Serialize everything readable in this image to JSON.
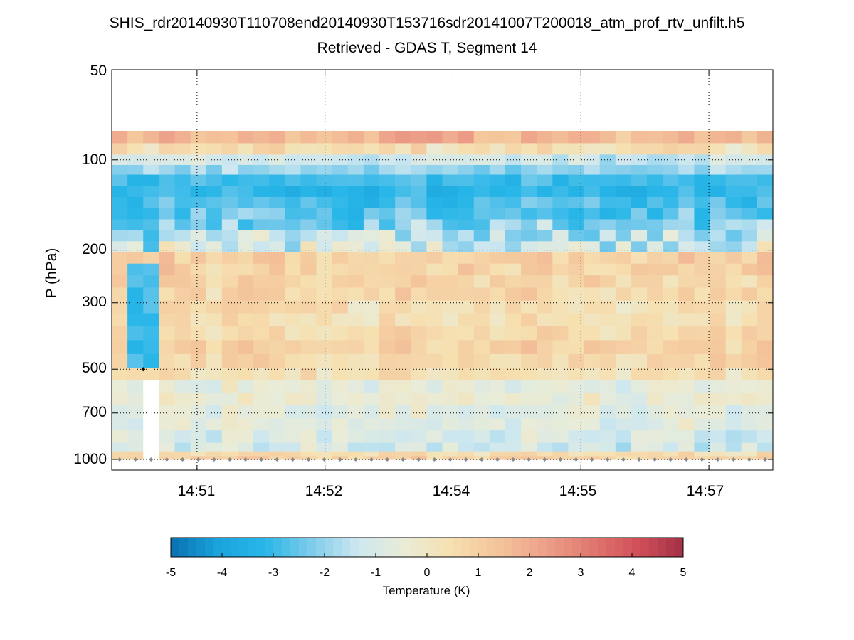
{
  "chart_data": {
    "type": "heatmap",
    "title": "SHIS_rdr20140930T110708end20140930T153716sdr20141007T200018_atm_prof_rtv_unfilt.h5",
    "subtitle": "Retrieved - GDAS T, Segment 14",
    "ylabel": "P (hPa)",
    "y_scale": "log",
    "y_reversed": true,
    "y_range_hPa": [
      50,
      1000
    ],
    "y_ticks": [
      {
        "value": 50,
        "label": "50"
      },
      {
        "value": 100,
        "label": "100"
      },
      {
        "value": 200,
        "label": "200"
      },
      {
        "value": 300,
        "label": "300"
      },
      {
        "value": 500,
        "label": "500"
      },
      {
        "value": 700,
        "label": "700"
      },
      {
        "value": 1000,
        "label": "1000"
      }
    ],
    "x_range_min": [
      0,
      93
    ],
    "x_ticks": [
      {
        "value": 12,
        "label": "14:51"
      },
      {
        "value": 30,
        "label": "14:52"
      },
      {
        "value": 48,
        "label": "14:54"
      },
      {
        "value": 66,
        "label": "14:55"
      },
      {
        "value": 84,
        "label": "14:57"
      }
    ],
    "grid": "dotted",
    "colorbar": {
      "label": "Temperature (K)",
      "range": [
        -5,
        5
      ],
      "ticks": [
        -5,
        -4,
        -3,
        -2,
        -1,
        0,
        1,
        2,
        3,
        4,
        5
      ],
      "tick_labels": [
        "-5",
        "-4",
        "-3",
        "-2",
        "-1",
        "0",
        "1",
        "2",
        "3",
        "4",
        "5"
      ],
      "colors": [
        "#0a6fb0",
        "#1aa3dc",
        "#28b6e8",
        "#7ccbeb",
        "#cde7f0",
        "#e9ecd8",
        "#f6e0b0",
        "#f4c59b",
        "#eda28a",
        "#e07a70",
        "#d2505a",
        "#a23045"
      ]
    },
    "columns": 42,
    "layers": [
      {
        "p_top": 80,
        "p_bottom": 88,
        "base": 1.6,
        "var": 0.5,
        "peak_cols": [
          17,
          18,
          19,
          20,
          21,
          22
        ],
        "peak_add": 0.9
      },
      {
        "p_top": 88,
        "p_bottom": 96,
        "base": 0.4,
        "var": 0.6
      },
      {
        "p_top": 96,
        "p_bottom": 104,
        "base": -1.2,
        "var": 0.6
      },
      {
        "p_top": 104,
        "p_bottom": 112,
        "base": -2.0,
        "var": 0.5
      },
      {
        "p_top": 112,
        "p_bottom": 122,
        "base": -3.0,
        "var": 0.4
      },
      {
        "p_top": 122,
        "p_bottom": 133,
        "base": -3.2,
        "var": 0.4
      },
      {
        "p_top": 133,
        "p_bottom": 145,
        "base": -2.9,
        "var": 0.5
      },
      {
        "p_top": 145,
        "p_bottom": 158,
        "base": -2.6,
        "var": 0.7
      },
      {
        "p_top": 158,
        "p_bottom": 172,
        "base": -2.2,
        "var": 1.0
      },
      {
        "p_top": 172,
        "p_bottom": 187,
        "base": -1.6,
        "var": 1.2
      },
      {
        "p_top": 187,
        "p_bottom": 203,
        "base": -1.0,
        "var": 1.2
      },
      {
        "p_top": 203,
        "p_bottom": 222,
        "base": 0.9,
        "var": 0.6
      },
      {
        "p_top": 222,
        "p_bottom": 243,
        "base": 0.8,
        "var": 0.6
      },
      {
        "p_top": 243,
        "p_bottom": 267,
        "base": 0.7,
        "var": 0.6
      },
      {
        "p_top": 267,
        "p_bottom": 295,
        "base": 0.7,
        "var": 0.6
      },
      {
        "p_top": 295,
        "p_bottom": 325,
        "base": 0.5,
        "var": 0.6
      },
      {
        "p_top": 325,
        "p_bottom": 360,
        "base": 0.4,
        "var": 0.5
      },
      {
        "p_top": 360,
        "p_bottom": 400,
        "base": 0.7,
        "var": 0.5
      },
      {
        "p_top": 400,
        "p_bottom": 445,
        "base": 0.9,
        "var": 0.5
      },
      {
        "p_top": 445,
        "p_bottom": 495,
        "base": 0.7,
        "var": 0.5
      },
      {
        "p_top": 495,
        "p_bottom": 545,
        "base": 0.3,
        "var": 0.5
      },
      {
        "p_top": 545,
        "p_bottom": 600,
        "base": -0.6,
        "var": 0.5
      },
      {
        "p_top": 600,
        "p_bottom": 660,
        "base": -0.4,
        "var": 0.5
      },
      {
        "p_top": 660,
        "p_bottom": 730,
        "base": -0.7,
        "var": 0.5
      },
      {
        "p_top": 730,
        "p_bottom": 800,
        "base": -0.8,
        "var": 0.5
      },
      {
        "p_top": 800,
        "p_bottom": 880,
        "base": -1.0,
        "var": 0.6
      },
      {
        "p_top": 880,
        "p_bottom": 940,
        "base": -1.1,
        "var": 0.7
      },
      {
        "p_top": 940,
        "p_bottom": 975,
        "base": 0.5,
        "var": 0.5
      },
      {
        "p_top": 975,
        "p_bottom": 1000,
        "base": 1.0,
        "var": 0.4
      }
    ],
    "anomalies": [
      {
        "col_from": 1,
        "col_to": 2,
        "p_top": 220,
        "p_bottom": 500,
        "value": -3.0
      },
      {
        "col_from": 2,
        "col_to": 2,
        "p_top": 140,
        "p_bottom": 220,
        "value": -3.0
      },
      {
        "col_from": 2,
        "col_to": 2,
        "p_top": 500,
        "p_bottom": 1000,
        "value": null
      }
    ],
    "surface_marker_p": 1000
  }
}
